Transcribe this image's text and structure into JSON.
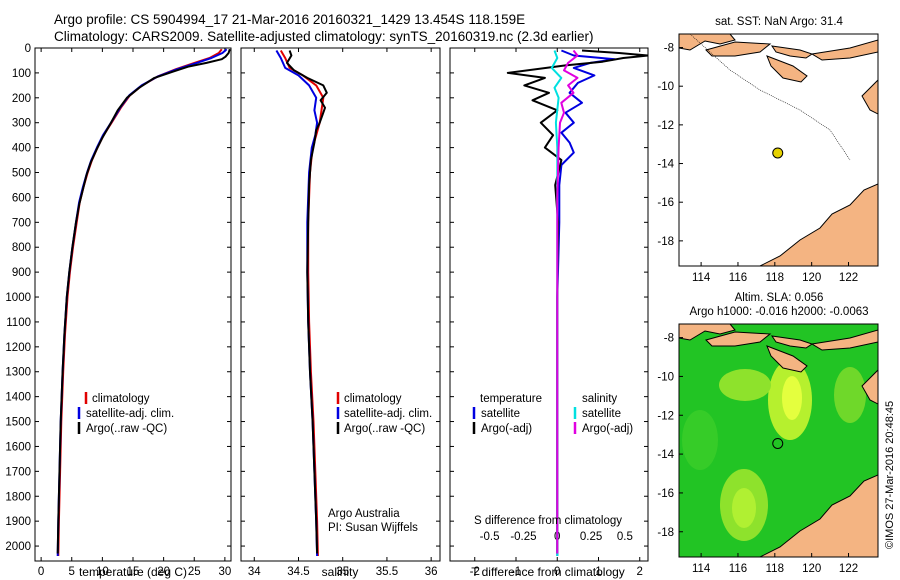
{
  "header": {
    "line1": "Argo profile: CS 5904994_17 21-Mar-2016 20160321_1429 13.454S 118.159E",
    "line2": "Climatology: CARS2009. Satellite-adjusted climatology: synTS_20160319.nc (2.3d earlier)"
  },
  "chart_data": [
    {
      "type": "line",
      "panel": "temperature",
      "xlabel": "temperature (deg C)",
      "xlim": [
        -1,
        31
      ],
      "xticks": [
        "0",
        "5",
        "10",
        "15",
        "20",
        "25",
        "30"
      ],
      "ylim": [
        0,
        2060
      ],
      "yticks": [
        "0",
        "100",
        "200",
        "300",
        "400",
        "500",
        "600",
        "700",
        "800",
        "900",
        "1000",
        "1100",
        "1200",
        "1300",
        "1400",
        "1500",
        "1600",
        "1700",
        "1800",
        "1900",
        "2000"
      ],
      "ydir": "reversed",
      "legend": [
        "climatology",
        "satellite-adj. clim.",
        "Argo(..raw -QC)"
      ],
      "series": [
        {
          "name": "climatology",
          "color": "#e00000",
          "points": [
            [
              29.5,
              5
            ],
            [
              29,
              20
            ],
            [
              27.5,
              40
            ],
            [
              25,
              60
            ],
            [
              22,
              85
            ],
            [
              19,
              115
            ],
            [
              16.5,
              150
            ],
            [
              14.5,
              190
            ],
            [
              13,
              240
            ],
            [
              11.5,
              300
            ],
            [
              10.2,
              350
            ],
            [
              9.2,
              400
            ],
            [
              8.3,
              450
            ],
            [
              7.6,
              500
            ],
            [
              6.9,
              560
            ],
            [
              6.3,
              620
            ],
            [
              5.8,
              700
            ],
            [
              5.2,
              800
            ],
            [
              4.7,
              900
            ],
            [
              4.3,
              1000
            ],
            [
              3.9,
              1150
            ],
            [
              3.6,
              1300
            ],
            [
              3.3,
              1500
            ],
            [
              3.1,
              1700
            ],
            [
              2.9,
              1900
            ],
            [
              2.8,
              2040
            ]
          ]
        },
        {
          "name": "satellite-adj. clim.",
          "color": "#0000e0",
          "points": [
            [
              30.3,
              5
            ],
            [
              29.6,
              20
            ],
            [
              27.8,
              40
            ],
            [
              25.4,
              60
            ],
            [
              22.2,
              85
            ],
            [
              19,
              115
            ],
            [
              16.4,
              150
            ],
            [
              14.4,
              190
            ],
            [
              12.9,
              240
            ],
            [
              11.4,
              300
            ],
            [
              10.1,
              350
            ],
            [
              9.1,
              400
            ],
            [
              8.2,
              450
            ],
            [
              7.5,
              500
            ],
            [
              6.8,
              560
            ],
            [
              6.2,
              620
            ],
            [
              5.7,
              700
            ],
            [
              5.1,
              800
            ],
            [
              4.6,
              900
            ],
            [
              4.2,
              1000
            ],
            [
              3.8,
              1150
            ],
            [
              3.5,
              1300
            ],
            [
              3.2,
              1500
            ],
            [
              3,
              1700
            ],
            [
              2.8,
              1900
            ],
            [
              2.7,
              2040
            ]
          ]
        },
        {
          "name": "Argo(..raw -QC)",
          "color": "#000000",
          "points": [
            [
              30.8,
              5
            ],
            [
              30.6,
              20
            ],
            [
              30.1,
              35
            ],
            [
              29.5,
              45
            ],
            [
              27,
              60
            ],
            [
              24,
              75
            ],
            [
              21.5,
              95
            ],
            [
              18.5,
              120
            ],
            [
              16,
              160
            ],
            [
              14,
              200
            ],
            [
              12.5,
              250
            ],
            [
              11.4,
              300
            ],
            [
              10,
              360
            ],
            [
              9,
              410
            ],
            [
              8.1,
              460
            ],
            [
              7.4,
              510
            ],
            [
              6.8,
              570
            ],
            [
              6.2,
              630
            ],
            [
              5.7,
              700
            ],
            [
              5.1,
              800
            ],
            [
              4.6,
              900
            ],
            [
              4.2,
              1000
            ],
            [
              3.8,
              1150
            ],
            [
              3.5,
              1300
            ],
            [
              3.2,
              1500
            ],
            [
              3,
              1700
            ],
            [
              2.8,
              1900
            ],
            [
              2.7,
              2030
            ]
          ]
        }
      ]
    },
    {
      "type": "line",
      "panel": "salinity",
      "xlabel": "salinity",
      "xlim": [
        33.85,
        36.1
      ],
      "xticks": [
        "34",
        "34.5",
        "35",
        "35.5",
        "36"
      ],
      "ylim": [
        0,
        2060
      ],
      "ydir": "reversed",
      "legend": [
        "climatology",
        "satellite-adj. clim.",
        "Argo(..raw -QC)"
      ],
      "annotation": [
        "Argo Australia",
        "PI: Susan Wijffels"
      ],
      "series": [
        {
          "name": "climatology",
          "color": "#e00000",
          "points": [
            [
              34.3,
              10
            ],
            [
              34.35,
              40
            ],
            [
              34.4,
              80
            ],
            [
              34.55,
              110
            ],
            [
              34.7,
              150
            ],
            [
              34.78,
              200
            ],
            [
              34.76,
              250
            ],
            [
              34.74,
              300
            ],
            [
              34.7,
              350
            ],
            [
              34.66,
              400
            ],
            [
              34.63,
              500
            ],
            [
              34.61,
              700
            ],
            [
              34.61,
              900
            ],
            [
              34.62,
              1100
            ],
            [
              34.64,
              1300
            ],
            [
              34.67,
              1500
            ],
            [
              34.69,
              1700
            ],
            [
              34.71,
              1900
            ],
            [
              34.72,
              2040
            ]
          ]
        },
        {
          "name": "satellite-adj. clim.",
          "color": "#0000e0",
          "points": [
            [
              34.25,
              10
            ],
            [
              34.3,
              40
            ],
            [
              34.35,
              80
            ],
            [
              34.5,
              110
            ],
            [
              34.62,
              150
            ],
            [
              34.7,
              200
            ],
            [
              34.68,
              250
            ],
            [
              34.71,
              300
            ],
            [
              34.69,
              350
            ],
            [
              34.65,
              400
            ],
            [
              34.62,
              500
            ],
            [
              34.6,
              700
            ],
            [
              34.6,
              900
            ],
            [
              34.61,
              1100
            ],
            [
              34.63,
              1300
            ],
            [
              34.66,
              1500
            ],
            [
              34.68,
              1700
            ],
            [
              34.7,
              1900
            ],
            [
              34.71,
              2040
            ]
          ]
        },
        {
          "name": "Argo(..raw -QC)",
          "color": "#000000",
          "points": [
            [
              34.4,
              10
            ],
            [
              34.42,
              30
            ],
            [
              34.37,
              60
            ],
            [
              34.45,
              90
            ],
            [
              34.6,
              120
            ],
            [
              34.78,
              150
            ],
            [
              34.82,
              180
            ],
            [
              34.75,
              210
            ],
            [
              34.8,
              240
            ],
            [
              34.77,
              270
            ],
            [
              34.74,
              300
            ],
            [
              34.7,
              330
            ],
            [
              34.68,
              380
            ],
            [
              34.64,
              450
            ],
            [
              34.62,
              550
            ],
            [
              34.61,
              700
            ],
            [
              34.6,
              900
            ],
            [
              34.61,
              1100
            ],
            [
              34.63,
              1300
            ],
            [
              34.66,
              1500
            ],
            [
              34.68,
              1700
            ],
            [
              34.7,
              1900
            ],
            [
              34.71,
              2030
            ]
          ]
        }
      ]
    },
    {
      "type": "line",
      "panel": "difference",
      "xlabel": "T difference from climatology",
      "xlabel_top": "S difference from climatology",
      "xlim": [
        -2.6,
        2.2
      ],
      "xticks": [
        "-2",
        "-1",
        "0",
        "1",
        "2"
      ],
      "xticks_top": [
        "-0.5",
        "-0.25",
        "0",
        "0.25",
        "0.5"
      ],
      "ylim": [
        0,
        2060
      ],
      "ydir": "reversed",
      "legend": {
        "temperature_title": "temperature",
        "salinity_title": "salinity",
        "temperature": [
          "satellite",
          "Argo(-adj)"
        ],
        "salinity": [
          "satellite",
          "Argo(-adj)"
        ]
      },
      "series": [
        {
          "name": "satellite",
          "quantity": "temperature",
          "color": "#0000e0",
          "points": [
            [
              0.1,
              10
            ],
            [
              0.4,
              30
            ],
            [
              1.4,
              45
            ],
            [
              0.8,
              60
            ],
            [
              0.4,
              80
            ],
            [
              0.9,
              110
            ],
            [
              0.5,
              140
            ],
            [
              0.3,
              180
            ],
            [
              0.6,
              220
            ],
            [
              0.2,
              260
            ],
            [
              0.4,
              300
            ],
            [
              0.1,
              340
            ],
            [
              0.3,
              380
            ],
            [
              0.4,
              420
            ],
            [
              0.1,
              470
            ],
            [
              0.05,
              550
            ],
            [
              0.05,
              700
            ],
            [
              0,
              1000
            ],
            [
              0,
              1500
            ],
            [
              0,
              2040
            ]
          ]
        },
        {
          "name": "Argo(-adj)",
          "quantity": "temperature",
          "color": "#000000",
          "points": [
            [
              0.6,
              10
            ],
            [
              1.5,
              20
            ],
            [
              2.2,
              30
            ],
            [
              1.6,
              40
            ],
            [
              1.1,
              55
            ],
            [
              0.2,
              70
            ],
            [
              -1.2,
              100
            ],
            [
              -0.3,
              120
            ],
            [
              -0.8,
              150
            ],
            [
              -0.2,
              180
            ],
            [
              -0.6,
              210
            ],
            [
              0,
              250
            ],
            [
              -0.4,
              300
            ],
            [
              -0.1,
              350
            ],
            [
              -0.3,
              400
            ],
            [
              0.1,
              450
            ],
            [
              -0.05,
              550
            ],
            [
              0.02,
              700
            ],
            [
              0,
              1000
            ],
            [
              0,
              1500
            ],
            [
              0,
              2030
            ]
          ]
        },
        {
          "name": "satellite",
          "quantity": "salinity",
          "color": "#00e0e0",
          "points": [
            [
              -0.02,
              10
            ],
            [
              0,
              40
            ],
            [
              -0.04,
              80
            ],
            [
              0.03,
              120
            ],
            [
              -0.02,
              160
            ],
            [
              0.01,
              200
            ],
            [
              -0.01,
              300
            ],
            [
              0,
              400
            ],
            [
              0,
              600
            ],
            [
              0,
              1000
            ],
            [
              0,
              1500
            ],
            [
              0,
              2040
            ]
          ]
        },
        {
          "name": "Argo(-adj)",
          "quantity": "salinity",
          "color": "#e000e0",
          "points": [
            [
              0.12,
              10
            ],
            [
              0.15,
              30
            ],
            [
              0.08,
              60
            ],
            [
              0.05,
              90
            ],
            [
              0.15,
              120
            ],
            [
              0.08,
              150
            ],
            [
              0.12,
              180
            ],
            [
              0.03,
              220
            ],
            [
              0.05,
              260
            ],
            [
              0.02,
              300
            ],
            [
              0.01,
              400
            ],
            [
              0,
              600
            ],
            [
              0,
              1000
            ],
            [
              0,
              1500
            ],
            [
              0,
              2030
            ]
          ]
        }
      ]
    },
    {
      "type": "map",
      "panel": "sst",
      "title": "sat. SST: NaN Argo: 31.4",
      "xticks": [
        "114",
        "116",
        "118",
        "120",
        "122"
      ],
      "yticks": [
        "-8",
        "-10",
        "-12",
        "-14",
        "-16",
        "-18"
      ],
      "xlim": [
        112.8,
        123.6
      ],
      "ylim": [
        -19.3,
        -7.3
      ],
      "float_position": {
        "lon": 118.159,
        "lat": -13.454
      },
      "colors": {
        "land": "#f4b482",
        "ocean": "#ffffff",
        "float_marker": "#e6d200"
      }
    },
    {
      "type": "map",
      "panel": "sla",
      "title_line1": "Altim. SLA: 0.056",
      "title_line2": "Argo h1000: -0.016 h2000: -0.0063",
      "xticks": [
        "114",
        "116",
        "118",
        "120",
        "122"
      ],
      "yticks": [
        "-8",
        "-10",
        "-12",
        "-14",
        "-16",
        "-18"
      ],
      "xlim": [
        112.8,
        123.6
      ],
      "ylim": [
        -19.3,
        -7.3
      ],
      "float_position": {
        "lon": 118.159,
        "lat": -13.454
      },
      "colors": {
        "land": "#f4b482",
        "ocean": "#1ec81e",
        "high": "#e6ff3c"
      }
    }
  ],
  "footer": {
    "credit": "©IMOS 27-Mar-2016 20:48:45"
  }
}
